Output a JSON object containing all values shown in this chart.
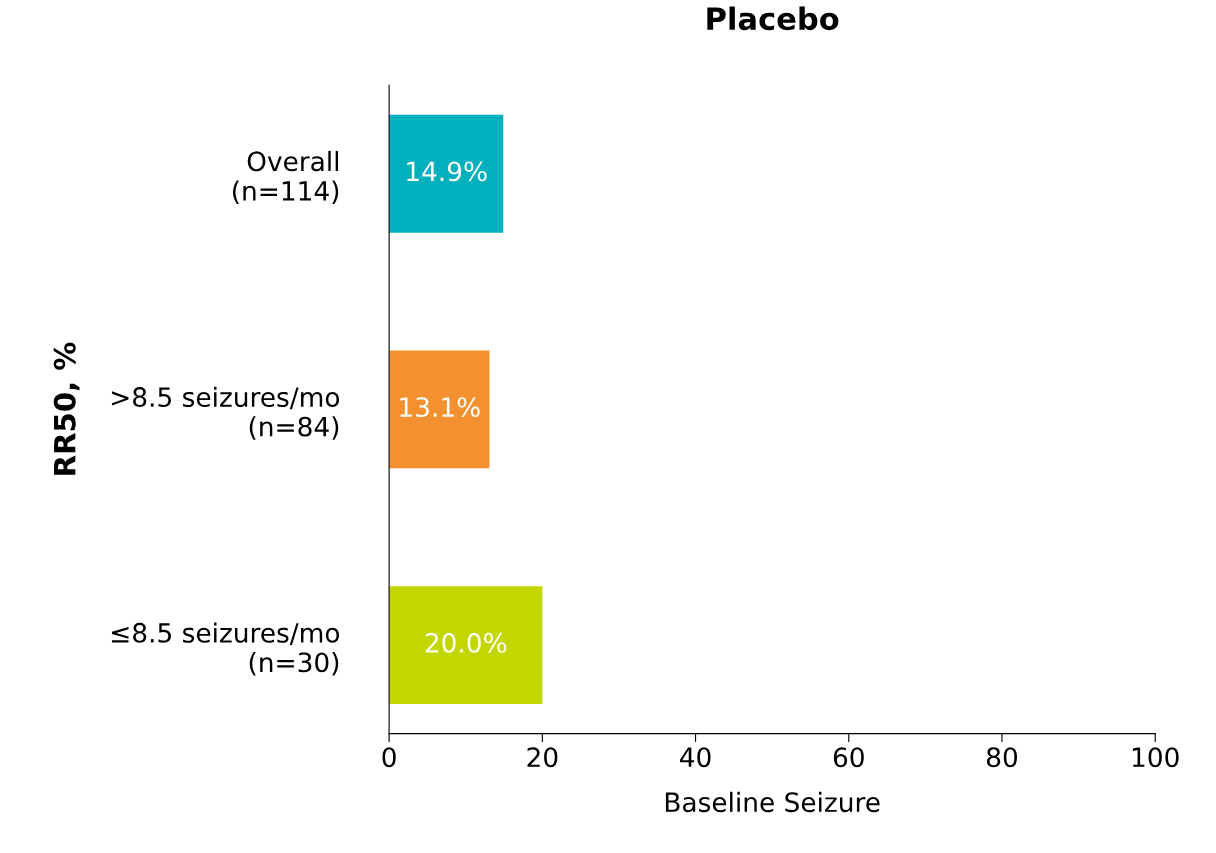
{
  "chart_data": {
    "type": "bar",
    "orientation": "horizontal",
    "title": "Placebo",
    "xlabel": "Baseline Seizure",
    "ylabel": "RR50, %",
    "categories": [
      "Overall\n(n=114)",
      ">8.5 seizures/mo\n(n=84)",
      "≤8.5 seizures/mo\n(n=30)"
    ],
    "values": [
      14.9,
      13.1,
      20.0
    ],
    "value_labels": [
      "14.9%",
      "13.1%",
      "20.0%"
    ],
    "colors": [
      "#00b0bd",
      "#f39130",
      "#c4d600"
    ],
    "xlim": [
      0,
      100
    ],
    "xticks": [
      0,
      20,
      40,
      60,
      80,
      100
    ],
    "grid": false,
    "legend": false
  }
}
